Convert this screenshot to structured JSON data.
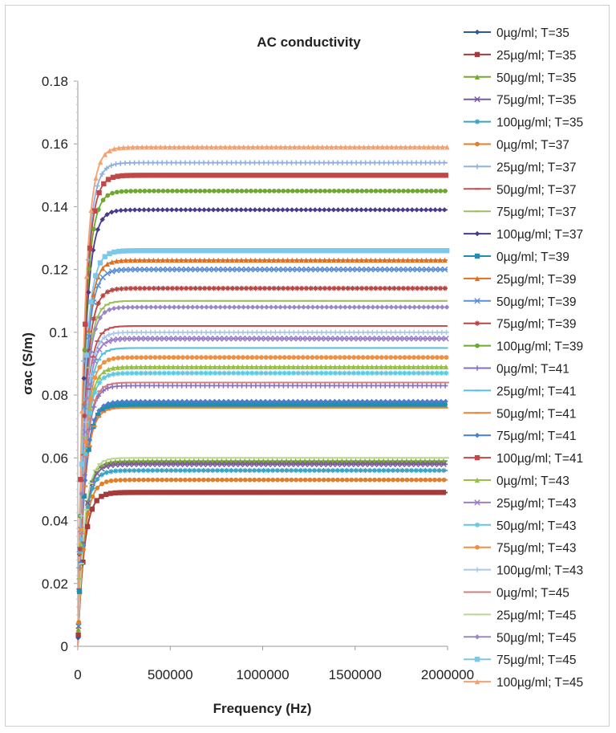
{
  "chart_data": {
    "type": "line",
    "title": "AC conductivity",
    "xlabel": "Frequency (Hz)",
    "ylabel": "σac (S/m)",
    "xlim": [
      0,
      2000000
    ],
    "ylim": [
      0,
      0.18
    ],
    "xticks": [
      "0",
      "500000",
      "1000000",
      "1500000",
      "2000000"
    ],
    "yticks": [
      "0",
      "0.02",
      "0.04",
      "0.06",
      "0.08",
      "0.1",
      "0.12",
      "0.14",
      "0.16",
      "0.18"
    ],
    "grid": false,
    "legend_position": "right",
    "series": [
      {
        "name": "0µg/ml; T=35",
        "color": "#2e5a9c",
        "marker": "diamond",
        "plateau": 0.049
      },
      {
        "name": "25µg/ml; T=35",
        "color": "#a63a3a",
        "marker": "square",
        "plateau": 0.049
      },
      {
        "name": "50µg/ml; T=35",
        "color": "#7aa82e",
        "marker": "triangle",
        "plateau": 0.059
      },
      {
        "name": "75µg/ml; T=35",
        "color": "#7a5aa0",
        "marker": "x",
        "plateau": 0.058
      },
      {
        "name": "100µg/ml; T=35",
        "color": "#3aa3c4",
        "marker": "star",
        "plateau": 0.056
      },
      {
        "name": "0µg/ml; T=37",
        "color": "#e0802a",
        "marker": "circle",
        "plateau": 0.053
      },
      {
        "name": "25µg/ml; T=37",
        "color": "#8fb0dc",
        "marker": "plus",
        "plateau": 0.154
      },
      {
        "name": "50µg/ml; T=37",
        "color": "#c05050",
        "marker": "dash",
        "plateau": 0.102
      },
      {
        "name": "75µg/ml; T=37",
        "color": "#9cc060",
        "marker": "dash",
        "plateau": 0.11
      },
      {
        "name": "100µg/ml; T=37",
        "color": "#4a3a8c",
        "marker": "diamond",
        "plateau": 0.139
      },
      {
        "name": "0µg/ml; T=39",
        "color": "#1f8fb0",
        "marker": "square",
        "plateau": 0.077
      },
      {
        "name": "25µg/ml; T=39",
        "color": "#e07020",
        "marker": "triangle",
        "plateau": 0.123
      },
      {
        "name": "50µg/ml; T=39",
        "color": "#5b8fd6",
        "marker": "x",
        "plateau": 0.12
      },
      {
        "name": "75µg/ml; T=39",
        "color": "#b84444",
        "marker": "star",
        "plateau": 0.114
      },
      {
        "name": "100µg/ml; T=39",
        "color": "#6fa830",
        "marker": "circle",
        "plateau": 0.145
      },
      {
        "name": "0µg/ml; T=41",
        "color": "#8a70b8",
        "marker": "plus",
        "plateau": 0.083
      },
      {
        "name": "25µg/ml; T=41",
        "color": "#55c0dc",
        "marker": "dash",
        "plateau": 0.095
      },
      {
        "name": "50µg/ml; T=41",
        "color": "#f08030",
        "marker": "dash",
        "plateau": 0.076
      },
      {
        "name": "75µg/ml; T=41",
        "color": "#4a7fd0",
        "marker": "diamond",
        "plateau": 0.078
      },
      {
        "name": "100µg/ml; T=41",
        "color": "#c04848",
        "marker": "square",
        "plateau": 0.15
      },
      {
        "name": "0µg/ml; T=43",
        "color": "#98c048",
        "marker": "triangle",
        "plateau": 0.089
      },
      {
        "name": "25µg/ml; T=43",
        "color": "#9a80c8",
        "marker": "x",
        "plateau": 0.098
      },
      {
        "name": "50µg/ml; T=43",
        "color": "#60c8e0",
        "marker": "star",
        "plateau": 0.087
      },
      {
        "name": "75µg/ml; T=43",
        "color": "#f09040",
        "marker": "circle",
        "plateau": 0.092
      },
      {
        "name": "100µg/ml; T=43",
        "color": "#a8c8ec",
        "marker": "plus",
        "plateau": 0.1
      },
      {
        "name": "0µg/ml; T=45",
        "color": "#d08080",
        "marker": "dash",
        "plateau": 0.084
      },
      {
        "name": "25µg/ml; T=45",
        "color": "#b8d890",
        "marker": "dash",
        "plateau": 0.06
      },
      {
        "name": "50µg/ml; T=45",
        "color": "#9a88c4",
        "marker": "diamond",
        "plateau": 0.108
      },
      {
        "name": "75µg/ml; T=45",
        "color": "#7cc8e8",
        "marker": "square",
        "plateau": 0.126
      },
      {
        "name": "100µg/ml; T=45",
        "color": "#f4a070",
        "marker": "triangle",
        "plateau": 0.159
      }
    ]
  }
}
